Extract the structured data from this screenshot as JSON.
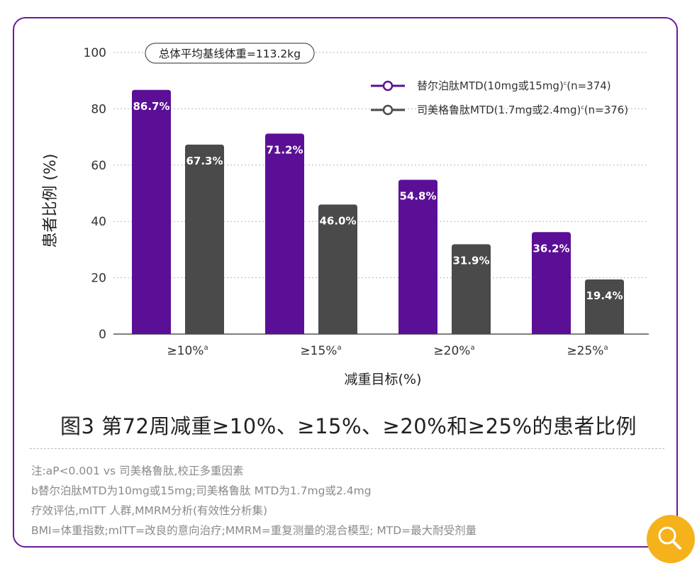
{
  "chart_data": {
    "type": "bar",
    "categories": [
      "≥10%",
      "≥15%",
      "≥20%",
      "≥25%"
    ],
    "category_superscript": "a",
    "series": [
      {
        "name": "替尔泊肽MTD(10mg或15mg)",
        "name_superscript": "c",
        "name_suffix": "(n=374)",
        "values": [
          86.7,
          71.2,
          54.8,
          36.2
        ],
        "color": "#5b0f96"
      },
      {
        "name": "司美格鲁肽MTD(1.7mg或2.4mg)",
        "name_superscript": "c",
        "name_suffix": "(n=376)",
        "values": [
          67.3,
          46.0,
          31.9,
          19.4
        ],
        "color": "#4a4a4a"
      }
    ],
    "value_labels": [
      [
        "86.7%",
        "71.2%",
        "54.8%",
        "36.2%"
      ],
      [
        "67.3%",
        "46.0%",
        "31.9%",
        "19.4%"
      ]
    ],
    "ylim": [
      0,
      100
    ],
    "yticks": [
      0,
      20,
      40,
      60,
      80,
      100
    ],
    "ylabel": "患者比例 (%)",
    "xlabel": "减重目标(%)",
    "annotation": "总体平均基线体重=113.2kg",
    "grid": true,
    "legend_position": "top-right"
  },
  "caption": "图3 第72周减重≥10%、≥15%、≥20%和≥25%的患者比例",
  "notes": [
    "注:aP<0.001 vs 司美格鲁肽,校正多重因素",
    "b替尔泊肽MTD为10mg或15mg;司美格鲁肽 MTD为1.7mg或2.4mg",
    "疗效评估,mITT 人群,MMRM分析(有效性分析集)",
    "BMI=体重指数;mITT=改良的意向治疗;MMRM=重复测量的混合模型; MTD=最大耐受剂量"
  ],
  "accent_color": "#5b0f96",
  "search_icon": "search-icon"
}
